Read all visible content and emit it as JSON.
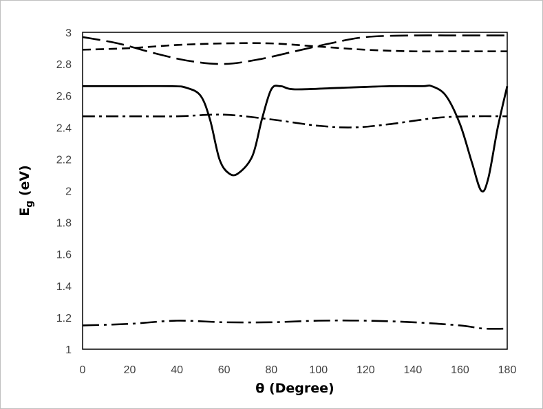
{
  "chart_data": {
    "type": "line",
    "title": "",
    "xlabel": "θ (Degree)",
    "ylabel_main": "E",
    "ylabel_sub": "g",
    "ylabel_rest": " (eV)",
    "xlim": [
      0,
      180
    ],
    "ylim": [
      1,
      3
    ],
    "x_ticks": [
      "0",
      "20",
      "40",
      "60",
      "80",
      "100",
      "120",
      "140",
      "160",
      "180"
    ],
    "y_ticks": [
      "1",
      "1.2",
      "1.4",
      "1.6",
      "1.8",
      "2",
      "2.2",
      "2.4",
      "2.6",
      "2.8",
      "3"
    ],
    "grid": false,
    "legend": "none",
    "series": [
      {
        "style": "solid",
        "points": [
          [
            0,
            2.66
          ],
          [
            20,
            2.66
          ],
          [
            38,
            2.66
          ],
          [
            44,
            2.65
          ],
          [
            50,
            2.6
          ],
          [
            54,
            2.45
          ],
          [
            58,
            2.2
          ],
          [
            62,
            2.11
          ],
          [
            66,
            2.11
          ],
          [
            72,
            2.22
          ],
          [
            76,
            2.45
          ],
          [
            80,
            2.64
          ],
          [
            84,
            2.66
          ],
          [
            90,
            2.64
          ],
          [
            110,
            2.65
          ],
          [
            130,
            2.66
          ],
          [
            144,
            2.66
          ],
          [
            148,
            2.66
          ],
          [
            154,
            2.6
          ],
          [
            160,
            2.42
          ],
          [
            165,
            2.18
          ],
          [
            169,
            2.0
          ],
          [
            172,
            2.08
          ],
          [
            176,
            2.4
          ],
          [
            180,
            2.66
          ]
        ]
      },
      {
        "style": "long-dash",
        "points": [
          [
            0,
            2.97
          ],
          [
            15,
            2.93
          ],
          [
            30,
            2.87
          ],
          [
            45,
            2.82
          ],
          [
            60,
            2.8
          ],
          [
            75,
            2.83
          ],
          [
            90,
            2.88
          ],
          [
            105,
            2.93
          ],
          [
            120,
            2.97
          ],
          [
            140,
            2.98
          ],
          [
            160,
            2.98
          ],
          [
            180,
            2.98
          ]
        ]
      },
      {
        "style": "dash",
        "points": [
          [
            0,
            2.89
          ],
          [
            20,
            2.9
          ],
          [
            40,
            2.92
          ],
          [
            60,
            2.93
          ],
          [
            80,
            2.93
          ],
          [
            100,
            2.91
          ],
          [
            120,
            2.89
          ],
          [
            140,
            2.88
          ],
          [
            160,
            2.88
          ],
          [
            180,
            2.88
          ]
        ]
      },
      {
        "style": "dash-dot",
        "points": [
          [
            0,
            2.47
          ],
          [
            20,
            2.47
          ],
          [
            40,
            2.47
          ],
          [
            60,
            2.48
          ],
          [
            80,
            2.45
          ],
          [
            100,
            2.41
          ],
          [
            115,
            2.4
          ],
          [
            130,
            2.42
          ],
          [
            150,
            2.46
          ],
          [
            165,
            2.47
          ],
          [
            180,
            2.47
          ]
        ]
      },
      {
        "style": "long-dash-dot",
        "points": [
          [
            0,
            1.15
          ],
          [
            20,
            1.16
          ],
          [
            40,
            1.18
          ],
          [
            60,
            1.17
          ],
          [
            80,
            1.17
          ],
          [
            100,
            1.18
          ],
          [
            120,
            1.18
          ],
          [
            140,
            1.17
          ],
          [
            160,
            1.15
          ],
          [
            170,
            1.13
          ],
          [
            180,
            1.13
          ]
        ]
      }
    ]
  }
}
